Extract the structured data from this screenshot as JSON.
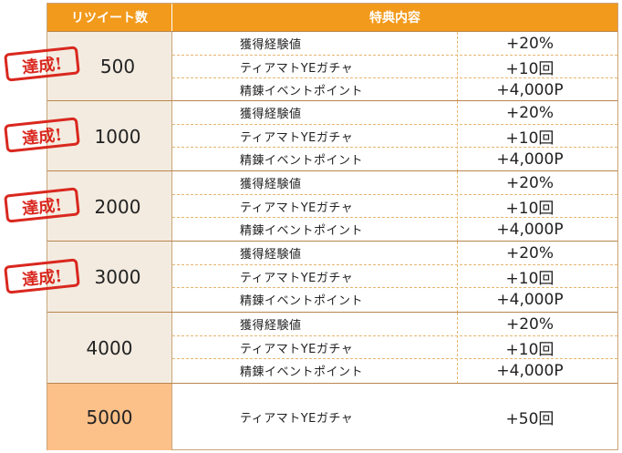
{
  "header": {
    "count_label": "リツイート数",
    "reward_label": "特典内容"
  },
  "stamp_text": "達成!",
  "rows": [
    {
      "count": "500",
      "achieved": true,
      "items": [
        {
          "name": "獲得経験値",
          "value": "+20%"
        },
        {
          "name": "ティアマトYEガチャ",
          "value": "+10回"
        },
        {
          "name": "精錬イベントポイント",
          "value": "+4,000P"
        }
      ]
    },
    {
      "count": "1000",
      "achieved": true,
      "items": [
        {
          "name": "獲得経験値",
          "value": "+20%"
        },
        {
          "name": "ティアマトYEガチャ",
          "value": "+10回"
        },
        {
          "name": "精錬イベントポイント",
          "value": "+4,000P"
        }
      ]
    },
    {
      "count": "2000",
      "achieved": true,
      "items": [
        {
          "name": "獲得経験値",
          "value": "+20%"
        },
        {
          "name": "ティアマトYEガチャ",
          "value": "+10回"
        },
        {
          "name": "精錬イベントポイント",
          "value": "+4,000P"
        }
      ]
    },
    {
      "count": "3000",
      "achieved": true,
      "items": [
        {
          "name": "獲得経験値",
          "value": "+20%"
        },
        {
          "name": "ティアマトYEガチャ",
          "value": "+10回"
        },
        {
          "name": "精錬イベントポイント",
          "value": "+4,000P"
        }
      ]
    },
    {
      "count": "4000",
      "achieved": false,
      "items": [
        {
          "name": "獲得経験値",
          "value": "+20%"
        },
        {
          "name": "ティアマトYEガチャ",
          "value": "+10回"
        },
        {
          "name": "精錬イベントポイント",
          "value": "+4,000P"
        }
      ]
    },
    {
      "count": "5000",
      "achieved": false,
      "items": [
        {
          "name": "ティアマトYEガチャ",
          "value": "+50回"
        }
      ]
    }
  ],
  "colors": {
    "header": "#f29a1c",
    "count_bg": "#f3ebe0",
    "final_count_bg": "#fcc089",
    "stamp": "#d9281f"
  }
}
